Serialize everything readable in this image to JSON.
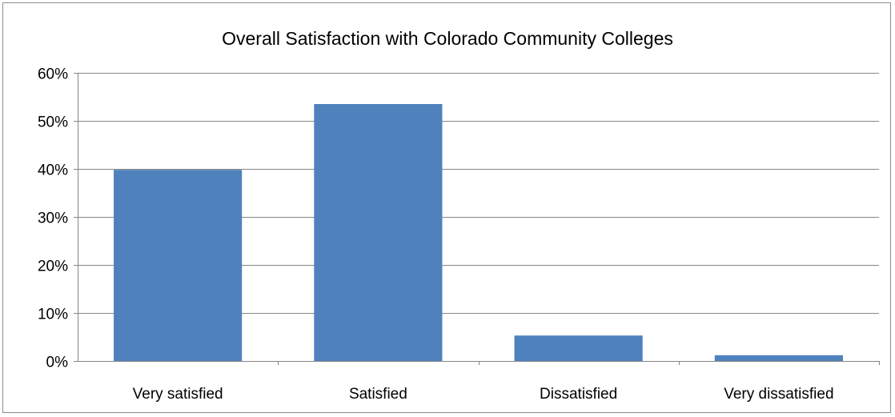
{
  "chart_data": {
    "type": "bar",
    "title": "Overall Satisfaction with Colorado Community Colleges",
    "xlabel": "",
    "ylabel": "",
    "categories": [
      "Very satisfied",
      "Satisfied",
      "Dissatisfied",
      "Very dissatisfied"
    ],
    "values": [
      0.398,
      0.535,
      0.053,
      0.012
    ],
    "ylim": [
      0,
      0.6
    ],
    "yticks": [
      0,
      0.1,
      0.2,
      0.3,
      0.4,
      0.5,
      0.6
    ],
    "ytick_labels": [
      "0%",
      "10%",
      "20%",
      "30%",
      "40%",
      "50%",
      "60%"
    ],
    "grid": true,
    "legend": "none",
    "bar_color": "#4f81bd",
    "gridline_color": "#868686"
  }
}
